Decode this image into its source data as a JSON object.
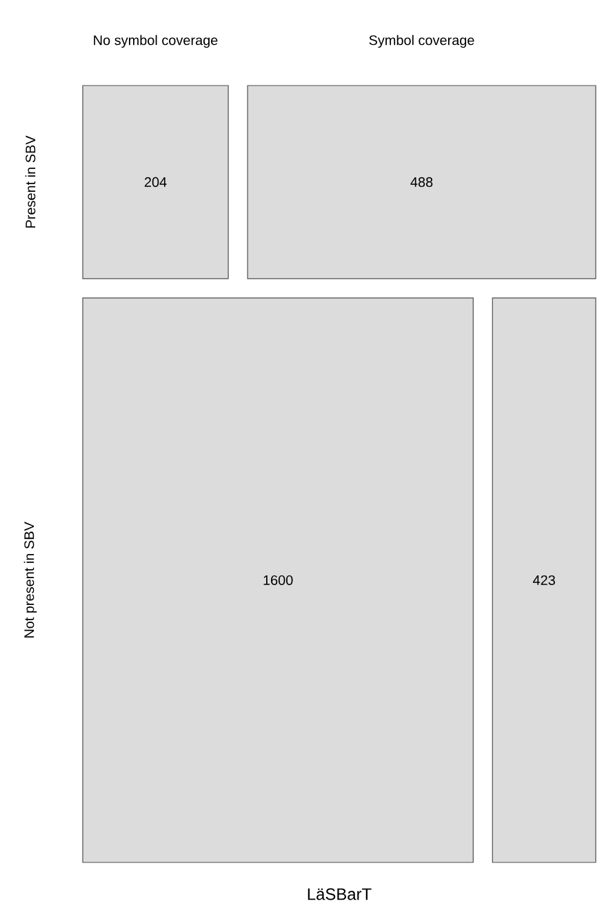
{
  "chart_data": {
    "type": "heatmap",
    "xlabel": "LäSBarT",
    "categories": [
      "No symbol coverage",
      "Symbol coverage"
    ],
    "y_categories": [
      "Present in SBV",
      "Not present in SBV"
    ],
    "cells": [
      [
        204,
        488
      ],
      [
        1600,
        423
      ]
    ],
    "data_labels": true,
    "color": "#dcdcdc"
  }
}
